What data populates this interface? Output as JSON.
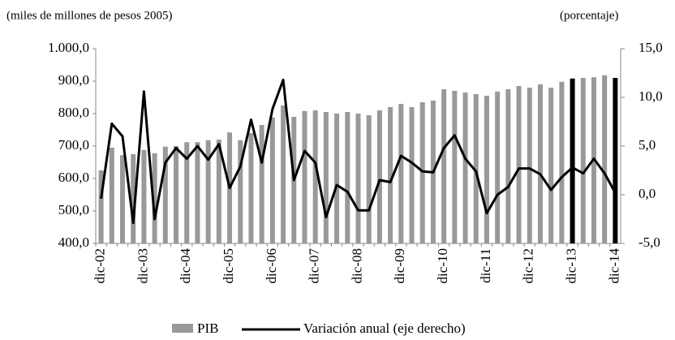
{
  "chart_data": {
    "type": "bar_line",
    "left_axis_label": "(miles de millones de pesos 2005)",
    "right_axis_label": "(porcentaje)",
    "categories": [
      "dic-02",
      null,
      null,
      null,
      "dic-03",
      null,
      null,
      null,
      "dic-04",
      null,
      null,
      null,
      "dic-05",
      null,
      null,
      null,
      "dic-06",
      null,
      null,
      null,
      "dic-07",
      null,
      null,
      null,
      "dic-08",
      null,
      null,
      null,
      "dic-09",
      null,
      null,
      null,
      "dic-10",
      null,
      null,
      null,
      "dic-11",
      null,
      null,
      null,
      "dic-12",
      null,
      null,
      null,
      "dic-13",
      null,
      null,
      null,
      "dic-14"
    ],
    "series": [
      {
        "name": "PIB",
        "color": "#999999",
        "colors": [
          "#999999",
          "#999999",
          "#999999",
          "#999999",
          "#999999",
          "#999999",
          "#999999",
          "#999999",
          "#999999",
          "#999999",
          "#999999",
          "#999999",
          "#999999",
          "#999999",
          "#999999",
          "#999999",
          "#999999",
          "#999999",
          "#999999",
          "#999999",
          "#999999",
          "#999999",
          "#999999",
          "#999999",
          "#999999",
          "#999999",
          "#999999",
          "#999999",
          "#999999",
          "#999999",
          "#999999",
          "#999999",
          "#999999",
          "#999999",
          "#999999",
          "#999999",
          "#999999",
          "#999999",
          "#999999",
          "#999999",
          "#999999",
          "#999999",
          "#999999",
          "#999999",
          "#000000",
          "#999999",
          "#999999",
          "#999999",
          "#000000"
        ],
        "values": [
          625,
          695,
          672,
          675,
          688,
          678,
          698,
          700,
          712,
          712,
          718,
          720,
          742,
          718,
          740,
          765,
          788,
          825,
          790,
          808,
          810,
          805,
          800,
          805,
          800,
          795,
          810,
          820,
          830,
          820,
          835,
          840,
          875,
          870,
          865,
          860,
          855,
          868,
          875,
          885,
          880,
          890,
          880,
          898,
          908,
          910,
          912,
          918,
          910
        ]
      },
      {
        "name": "Variación anual (eje derecho)",
        "color": "#000000",
        "axis": "y2",
        "values": [
          -0.4,
          7.3,
          6.0,
          -2.9,
          10.6,
          -2.5,
          3.3,
          4.8,
          3.7,
          5.0,
          3.6,
          5.2,
          0.7,
          2.9,
          7.7,
          3.3,
          8.8,
          11.8,
          1.5,
          4.5,
          3.3,
          -2.3,
          1.0,
          0.3,
          -1.6,
          -1.6,
          1.5,
          1.3,
          4.0,
          3.3,
          2.4,
          2.3,
          4.8,
          6.1,
          3.7,
          2.4,
          -1.9,
          0.0,
          0.8,
          2.7,
          2.7,
          2.1,
          0.5,
          1.8,
          2.8,
          2.2,
          3.7,
          2.2,
          0.2
        ]
      }
    ],
    "ylim": [
      400,
      1000
    ],
    "yticks": [
      {
        "value": 400,
        "label": "400,0"
      },
      {
        "value": 500,
        "label": "500,0"
      },
      {
        "value": 600,
        "label": "600,0"
      },
      {
        "value": 700,
        "label": "700,0"
      },
      {
        "value": 800,
        "label": "800,0"
      },
      {
        "value": 900,
        "label": "900,0"
      },
      {
        "value": 1000,
        "label": "1.000,0"
      }
    ],
    "y2lim": [
      -5,
      15
    ],
    "y2ticks": [
      {
        "value": -5,
        "label": "-5,0"
      },
      {
        "value": 0,
        "label": "0,0"
      },
      {
        "value": 5,
        "label": "5,0"
      },
      {
        "value": 10,
        "label": "10,0"
      },
      {
        "value": 15,
        "label": "15,0"
      }
    ]
  }
}
